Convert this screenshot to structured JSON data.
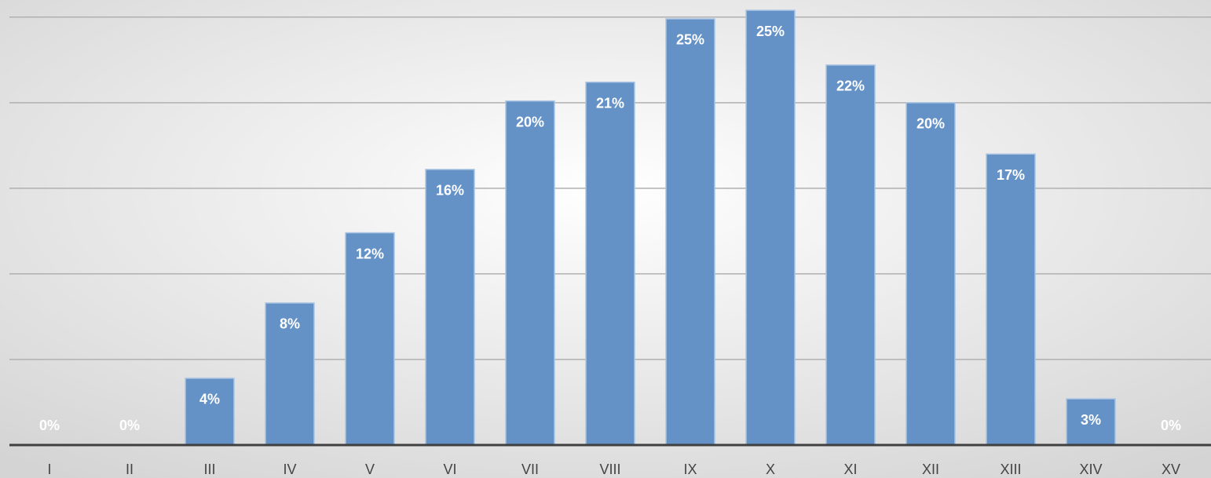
{
  "chart_data": {
    "type": "bar",
    "categories": [
      "I",
      "II",
      "III",
      "IV",
      "V",
      "VI",
      "VII",
      "VIII",
      "IX",
      "X",
      "XI",
      "XII",
      "XIII",
      "XIV",
      "XV"
    ],
    "values": [
      0,
      0,
      3.9,
      8.3,
      12.4,
      16.1,
      20.1,
      21.2,
      24.9,
      25.4,
      22.2,
      20.0,
      17.0,
      2.7,
      0
    ],
    "value_labels": [
      "0%",
      "0%",
      "4%",
      "8%",
      "12%",
      "16%",
      "20%",
      "21%",
      "25%",
      "25%",
      "22%",
      "20%",
      "17%",
      "3%",
      "0%"
    ],
    "color": "#6592c6",
    "ylim": [
      0,
      26
    ],
    "yticks": [
      0,
      5,
      10,
      15,
      20,
      25
    ],
    "grid": true
  }
}
